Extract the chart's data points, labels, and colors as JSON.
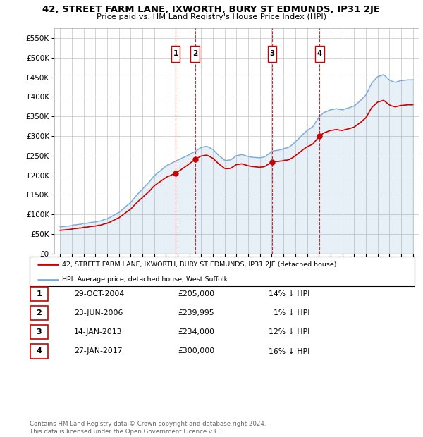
{
  "title": "42, STREET FARM LANE, IXWORTH, BURY ST EDMUNDS, IP31 2JE",
  "subtitle": "Price paid vs. HM Land Registry's House Price Index (HPI)",
  "hpi_color": "#7aaad4",
  "price_color": "#cc0000",
  "transaction_color": "#cc0000",
  "dashed_line_color": "#cc0000",
  "background_color": "#ffffff",
  "plot_bg_color": "#ffffff",
  "grid_color": "#cccccc",
  "ylim": [
    0,
    575000
  ],
  "yticks": [
    0,
    50000,
    100000,
    150000,
    200000,
    250000,
    300000,
    350000,
    400000,
    450000,
    500000,
    550000
  ],
  "ytick_labels": [
    "£0",
    "£50K",
    "£100K",
    "£150K",
    "£200K",
    "£250K",
    "£300K",
    "£350K",
    "£400K",
    "£450K",
    "£500K",
    "£550K"
  ],
  "transactions": [
    {
      "num": 1,
      "date_str": "29-OCT-2004",
      "year": 2004.83,
      "price": 205000,
      "pct": "14%",
      "dir": "↓"
    },
    {
      "num": 2,
      "date_str": "23-JUN-2006",
      "year": 2006.48,
      "price": 239995,
      "pct": "1%",
      "dir": "↓"
    },
    {
      "num": 3,
      "date_str": "14-JAN-2013",
      "year": 2013.04,
      "price": 234000,
      "pct": "12%",
      "dir": "↓"
    },
    {
      "num": 4,
      "date_str": "27-JAN-2017",
      "year": 2017.07,
      "price": 300000,
      "pct": "16%",
      "dir": "↓"
    }
  ],
  "legend_line1": "42, STREET FARM LANE, IXWORTH, BURY ST EDMUNDS, IP31 2JE (detached house)",
  "legend_line2": "HPI: Average price, detached house, West Suffolk",
  "footnote1": "Contains HM Land Registry data © Crown copyright and database right 2024.",
  "footnote2": "This data is licensed under the Open Government Licence v3.0.",
  "table_rows": [
    {
      "num": 1,
      "date": "29-OCT-2004",
      "price": "£205,000",
      "pct": "14% ↓ HPI"
    },
    {
      "num": 2,
      "date": "23-JUN-2006",
      "price": "£239,995",
      "pct": "  1% ↓ HPI"
    },
    {
      "num": 3,
      "date": "14-JAN-2013",
      "price": "£234,000",
      "pct": "12% ↓ HPI"
    },
    {
      "num": 4,
      "date": "27-JAN-2017",
      "price": "£300,000",
      "pct": "16% ↓ HPI"
    }
  ]
}
